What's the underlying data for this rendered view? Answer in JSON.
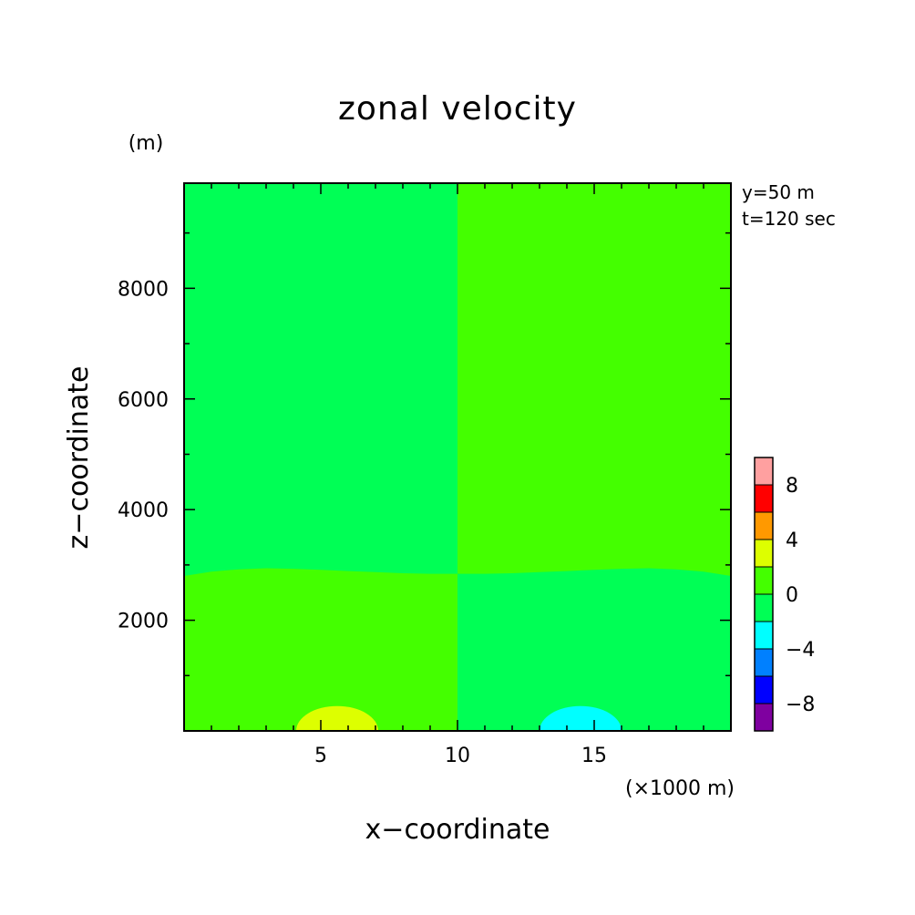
{
  "chart_data": {
    "type": "heatmap",
    "title": "zonal velocity",
    "xlabel": "x−coordinate",
    "ylabel": "z−coordinate",
    "x_units": "(×1000 m)",
    "y_units": "(m)",
    "annotations": [
      "y=50 m",
      "t=120 sec"
    ],
    "xlim": [
      0,
      20
    ],
    "ylim": [
      0,
      9900
    ],
    "x_ticks": [
      5,
      10,
      15
    ],
    "x_tick_labels": [
      "5",
      "10",
      "15"
    ],
    "y_ticks": [
      2000,
      4000,
      6000,
      8000
    ],
    "y_tick_labels": [
      "2000",
      "4000",
      "6000",
      "8000"
    ],
    "colorbar": {
      "levels": [
        -10,
        -8,
        -6,
        -4,
        -2,
        0,
        2,
        4,
        6,
        8,
        10
      ],
      "colors": [
        "#7f00a0",
        "#0000ff",
        "#0080ff",
        "#00ffff",
        "#00ff55",
        "#44ff00",
        "#ddff00",
        "#ff9900",
        "#ff0000",
        "#ffa0a0"
      ],
      "tick_values": [
        -8,
        -4,
        0,
        4,
        8
      ],
      "tick_labels": [
        "−8",
        "−4",
        "0",
        "4",
        "8"
      ]
    },
    "regions": [
      {
        "name": "background",
        "color": "#00ff55",
        "value_range": [
          -2,
          0
        ]
      },
      {
        "name": "upper-right",
        "x": [
          10,
          20
        ],
        "z": [
          2900,
          9900
        ],
        "color": "#44ff00",
        "value_range": [
          0,
          2
        ]
      },
      {
        "name": "lower-left",
        "x": [
          0,
          10
        ],
        "z": [
          0,
          2900
        ],
        "color": "#44ff00",
        "value_range": [
          0,
          2
        ]
      },
      {
        "name": "bubble-left",
        "center_x": 5.6,
        "radius_x": 1.5,
        "top_z": 450,
        "color": "#ddff00",
        "value_range": [
          2,
          4
        ]
      },
      {
        "name": "bubble-right",
        "center_x": 14.5,
        "radius_x": 1.5,
        "top_z": 450,
        "color": "#00ffff",
        "value_range": [
          -4,
          -2
        ]
      }
    ],
    "interface_z": {
      "x": [
        0,
        1,
        2,
        3,
        4,
        5,
        6,
        7,
        8,
        9,
        10,
        11,
        12,
        13,
        14,
        15,
        16,
        17,
        18,
        19,
        20
      ],
      "z": [
        2800,
        2880,
        2920,
        2940,
        2930,
        2910,
        2890,
        2870,
        2850,
        2840,
        2840,
        2840,
        2850,
        2870,
        2890,
        2910,
        2930,
        2940,
        2920,
        2880,
        2800
      ]
    },
    "grid": false,
    "legend": "colorbar right"
  }
}
